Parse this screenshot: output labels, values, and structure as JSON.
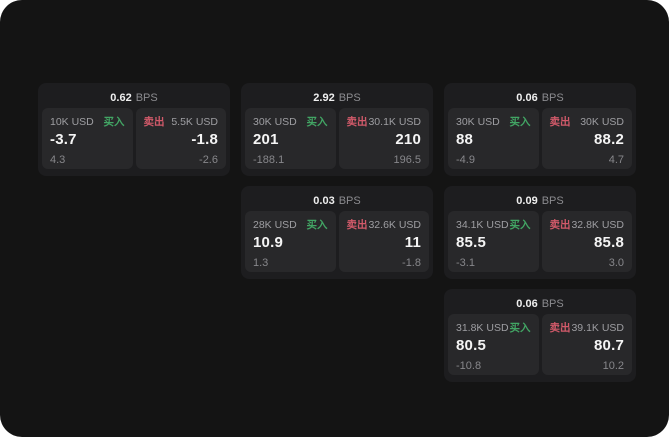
{
  "colors": {
    "page_bg": "#141414",
    "card_bg": "#1d1d1f",
    "panel_bg": "#28282a",
    "buy_green": "#42a564",
    "sell_red": "#d25a6a",
    "value_white": "#f5f5f5",
    "muted_gray": "#87878b"
  },
  "labels": {
    "bps_unit": "BPS",
    "buy": "买入",
    "sell": "卖出"
  },
  "cards": [
    {
      "bps": "0.62",
      "buy": {
        "size": "10K USD",
        "value": "-3.7",
        "delta": "4.3"
      },
      "sell": {
        "size": "5.5K USD",
        "value": "-1.8",
        "delta": "-2.6"
      }
    },
    {
      "bps": "2.92",
      "buy": {
        "size": "30K USD",
        "value": "201",
        "delta": "-188.1"
      },
      "sell": {
        "size": "30.1K USD",
        "value": "210",
        "delta": "196.5"
      }
    },
    {
      "bps": "0.06",
      "buy": {
        "size": "30K USD",
        "value": "88",
        "delta": "-4.9"
      },
      "sell": {
        "size": "30K USD",
        "value": "88.2",
        "delta": "4.7"
      }
    },
    {
      "bps": "0.03",
      "buy": {
        "size": "28K USD",
        "value": "10.9",
        "delta": "1.3"
      },
      "sell": {
        "size": "32.6K USD",
        "value": "11",
        "delta": "-1.8"
      }
    },
    {
      "bps": "0.09",
      "buy": {
        "size": "34.1K USD",
        "value": "85.5",
        "delta": "-3.1"
      },
      "sell": {
        "size": "32.8K USD",
        "value": "85.8",
        "delta": "3.0"
      }
    },
    {
      "bps": "0.06",
      "buy": {
        "size": "31.8K USD",
        "value": "80.5",
        "delta": "-10.8"
      },
      "sell": {
        "size": "39.1K USD",
        "value": "80.7",
        "delta": "10.2"
      }
    }
  ]
}
